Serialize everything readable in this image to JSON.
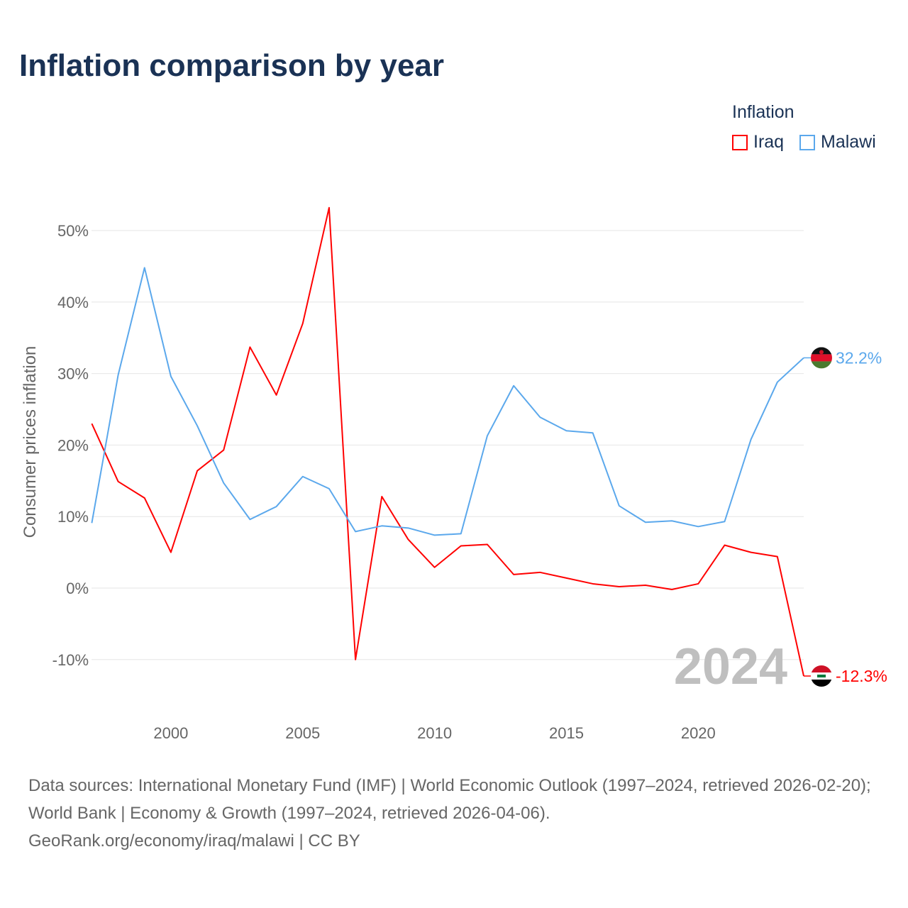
{
  "title": "Inflation comparison by year",
  "legend": {
    "title": "Inflation",
    "items": [
      {
        "label": "Iraq",
        "color": "#ff0000"
      },
      {
        "label": "Malawi",
        "color": "#5ba8ec"
      }
    ]
  },
  "year_watermark": "2024",
  "footer": {
    "sources": "Data sources: International Monetary Fund (IMF) | World Economic Outlook (1997–2024, retrieved 2026-02-20); World Bank | Economy & Growth (1997–2024, retrieved 2026-04-06).",
    "credit": "GeoRank.org/economy/iraq/malawi | CC BY"
  },
  "chart_data": {
    "type": "line",
    "title": "Inflation comparison by year",
    "xlabel": "",
    "ylabel": "Consumer prices inflation",
    "xlim": [
      1997,
      2024
    ],
    "ylim": [
      -15,
      55
    ],
    "yticks": [
      -10,
      0,
      10,
      20,
      30,
      40,
      50
    ],
    "ytick_labels": [
      "-10%",
      "0%",
      "10%",
      "20%",
      "30%",
      "40%",
      "50%"
    ],
    "xticks": [
      2000,
      2005,
      2010,
      2015,
      2020
    ],
    "xtick_labels": [
      "2000",
      "2005",
      "2010",
      "2015",
      "2020"
    ],
    "grid": true,
    "legend_position": "top-right",
    "x": [
      1997,
      1998,
      1999,
      2000,
      2001,
      2002,
      2003,
      2004,
      2005,
      2006,
      2007,
      2008,
      2009,
      2010,
      2011,
      2012,
      2013,
      2014,
      2015,
      2016,
      2017,
      2018,
      2019,
      2020,
      2021,
      2022,
      2023,
      2024
    ],
    "series": [
      {
        "name": "Iraq",
        "color": "#ff0000",
        "end_label": "-12.3%",
        "values": [
          23.0,
          14.9,
          12.6,
          5.0,
          16.4,
          19.3,
          33.7,
          27.0,
          37.0,
          53.2,
          -10.0,
          12.8,
          6.8,
          2.9,
          5.9,
          6.1,
          1.9,
          2.2,
          1.4,
          0.6,
          0.2,
          0.4,
          -0.2,
          0.6,
          6.0,
          5.0,
          4.4,
          -12.3
        ]
      },
      {
        "name": "Malawi",
        "color": "#5ba8ec",
        "end_label": "32.2%",
        "values": [
          9.1,
          29.8,
          44.8,
          29.6,
          22.7,
          14.7,
          9.6,
          11.4,
          15.6,
          13.9,
          7.9,
          8.7,
          8.4,
          7.4,
          7.6,
          21.3,
          28.3,
          23.9,
          22.0,
          21.7,
          11.5,
          9.2,
          9.4,
          8.6,
          9.3,
          20.8,
          28.8,
          32.2
        ]
      }
    ]
  }
}
